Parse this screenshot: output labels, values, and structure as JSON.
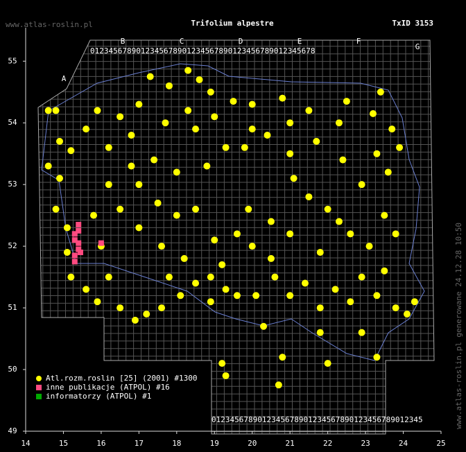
{
  "header": {
    "site": "www.atlas-roslin.pl",
    "title": "Trifolium alpestre",
    "txid": "TxID 3153"
  },
  "side_note": "www.atlas-roslin.pl generowane 24.12.28 10:50",
  "map": {
    "xlim": [
      14,
      25
    ],
    "ylim": [
      49,
      55.43
    ],
    "xticks": [
      14,
      15,
      16,
      17,
      18,
      19,
      20,
      21,
      22,
      23,
      24,
      25
    ],
    "yticks": [
      49,
      50,
      51,
      52,
      53,
      54,
      55
    ],
    "grid_top_digits": "0123456789012345678901234567890123456789012345678",
    "grid_bottom_digits": "0123456789012345678901234567890123456789012345",
    "grid_columns": [
      "A",
      "B",
      "C",
      "D",
      "E",
      "F",
      "G"
    ],
    "series": [
      {
        "name": "Atl.rozm.roslin [25] (2001) #1300",
        "color": "#ffff00",
        "shape": "circle",
        "points": [
          [
            17.3,
            54.75
          ],
          [
            17.8,
            54.6
          ],
          [
            18.3,
            54.85
          ],
          [
            18.6,
            54.7
          ],
          [
            18.9,
            54.5
          ],
          [
            19.5,
            54.35
          ],
          [
            20.0,
            54.3
          ],
          [
            20.8,
            54.4
          ],
          [
            21.5,
            54.2
          ],
          [
            22.5,
            54.35
          ],
          [
            23.2,
            54.15
          ],
          [
            23.4,
            54.5
          ],
          [
            17.0,
            54.3
          ],
          [
            16.5,
            54.1
          ],
          [
            15.9,
            54.2
          ],
          [
            14.6,
            54.2
          ],
          [
            14.8,
            54.2
          ],
          [
            14.9,
            53.7
          ],
          [
            15.2,
            53.55
          ],
          [
            14.6,
            53.3
          ],
          [
            14.9,
            53.1
          ],
          [
            14.8,
            52.6
          ],
          [
            15.1,
            52.3
          ],
          [
            15.1,
            51.9
          ],
          [
            15.2,
            51.5
          ],
          [
            15.6,
            51.3
          ],
          [
            15.9,
            51.1
          ],
          [
            16.2,
            51.5
          ],
          [
            16.5,
            51.0
          ],
          [
            16.9,
            50.8
          ],
          [
            17.2,
            50.9
          ],
          [
            17.6,
            51.0
          ],
          [
            18.1,
            51.2
          ],
          [
            18.5,
            51.4
          ],
          [
            18.9,
            51.1
          ],
          [
            19.3,
            51.3
          ],
          [
            19.6,
            51.2
          ],
          [
            20.1,
            51.2
          ],
          [
            20.3,
            50.7
          ],
          [
            20.6,
            51.5
          ],
          [
            21.0,
            51.2
          ],
          [
            21.4,
            51.4
          ],
          [
            21.8,
            51.0
          ],
          [
            22.2,
            51.3
          ],
          [
            22.6,
            51.1
          ],
          [
            22.9,
            51.5
          ],
          [
            23.3,
            51.2
          ],
          [
            23.8,
            51.0
          ],
          [
            24.1,
            50.9
          ],
          [
            24.3,
            51.1
          ],
          [
            23.5,
            51.6
          ],
          [
            23.1,
            52.0
          ],
          [
            22.6,
            52.2
          ],
          [
            22.0,
            52.6
          ],
          [
            21.5,
            52.8
          ],
          [
            21.0,
            52.2
          ],
          [
            20.5,
            52.4
          ],
          [
            20.0,
            52.0
          ],
          [
            19.6,
            52.2
          ],
          [
            19.0,
            52.1
          ],
          [
            18.5,
            52.6
          ],
          [
            18.0,
            52.5
          ],
          [
            17.5,
            52.7
          ],
          [
            17.0,
            52.3
          ],
          [
            16.5,
            52.6
          ],
          [
            16.2,
            53.0
          ],
          [
            16.8,
            53.3
          ],
          [
            17.4,
            53.4
          ],
          [
            18.0,
            53.2
          ],
          [
            18.8,
            53.3
          ],
          [
            19.3,
            53.6
          ],
          [
            19.8,
            53.6
          ],
          [
            20.4,
            53.8
          ],
          [
            21.0,
            53.5
          ],
          [
            21.7,
            53.7
          ],
          [
            22.4,
            53.4
          ],
          [
            22.9,
            53.0
          ],
          [
            23.3,
            53.5
          ],
          [
            23.7,
            53.9
          ],
          [
            23.9,
            53.6
          ],
          [
            23.6,
            53.2
          ],
          [
            22.3,
            54.0
          ],
          [
            21.0,
            54.0
          ],
          [
            20.0,
            53.9
          ],
          [
            18.5,
            53.9
          ],
          [
            17.7,
            54.0
          ],
          [
            16.8,
            53.8
          ],
          [
            16.2,
            53.6
          ],
          [
            15.8,
            52.5
          ],
          [
            16.0,
            52.0
          ],
          [
            17.6,
            52.0
          ],
          [
            18.2,
            51.8
          ],
          [
            19.2,
            51.7
          ],
          [
            20.5,
            51.8
          ],
          [
            21.8,
            51.9
          ],
          [
            22.3,
            52.4
          ],
          [
            23.5,
            52.5
          ],
          [
            23.8,
            52.2
          ],
          [
            22.9,
            50.6
          ],
          [
            20.8,
            50.2
          ],
          [
            19.2,
            50.1
          ],
          [
            19.3,
            49.9
          ],
          [
            21.8,
            50.6
          ],
          [
            20.7,
            49.75
          ],
          [
            22.0,
            50.1
          ],
          [
            23.3,
            50.2
          ],
          [
            17.8,
            51.5
          ],
          [
            18.9,
            51.5
          ],
          [
            19.9,
            52.6
          ],
          [
            21.1,
            53.1
          ],
          [
            17.0,
            53.0
          ],
          [
            18.3,
            54.2
          ],
          [
            19.0,
            54.1
          ],
          [
            15.6,
            53.9
          ]
        ]
      },
      {
        "name": "inne publikacje (ATPOL) #16",
        "color": "#ff4a80",
        "shape": "square",
        "points": [
          [
            15.4,
            52.35
          ],
          [
            15.4,
            52.25
          ],
          [
            15.3,
            52.2
          ],
          [
            15.3,
            52.1
          ],
          [
            15.4,
            52.05
          ],
          [
            15.4,
            51.95
          ],
          [
            15.3,
            51.85
          ],
          [
            15.3,
            51.75
          ],
          [
            15.45,
            51.9
          ],
          [
            16.0,
            52.05
          ]
        ]
      },
      {
        "name": "informatorzy (ATPOL) #1",
        "color": "#00aa00",
        "shape": "square",
        "points": []
      }
    ]
  }
}
